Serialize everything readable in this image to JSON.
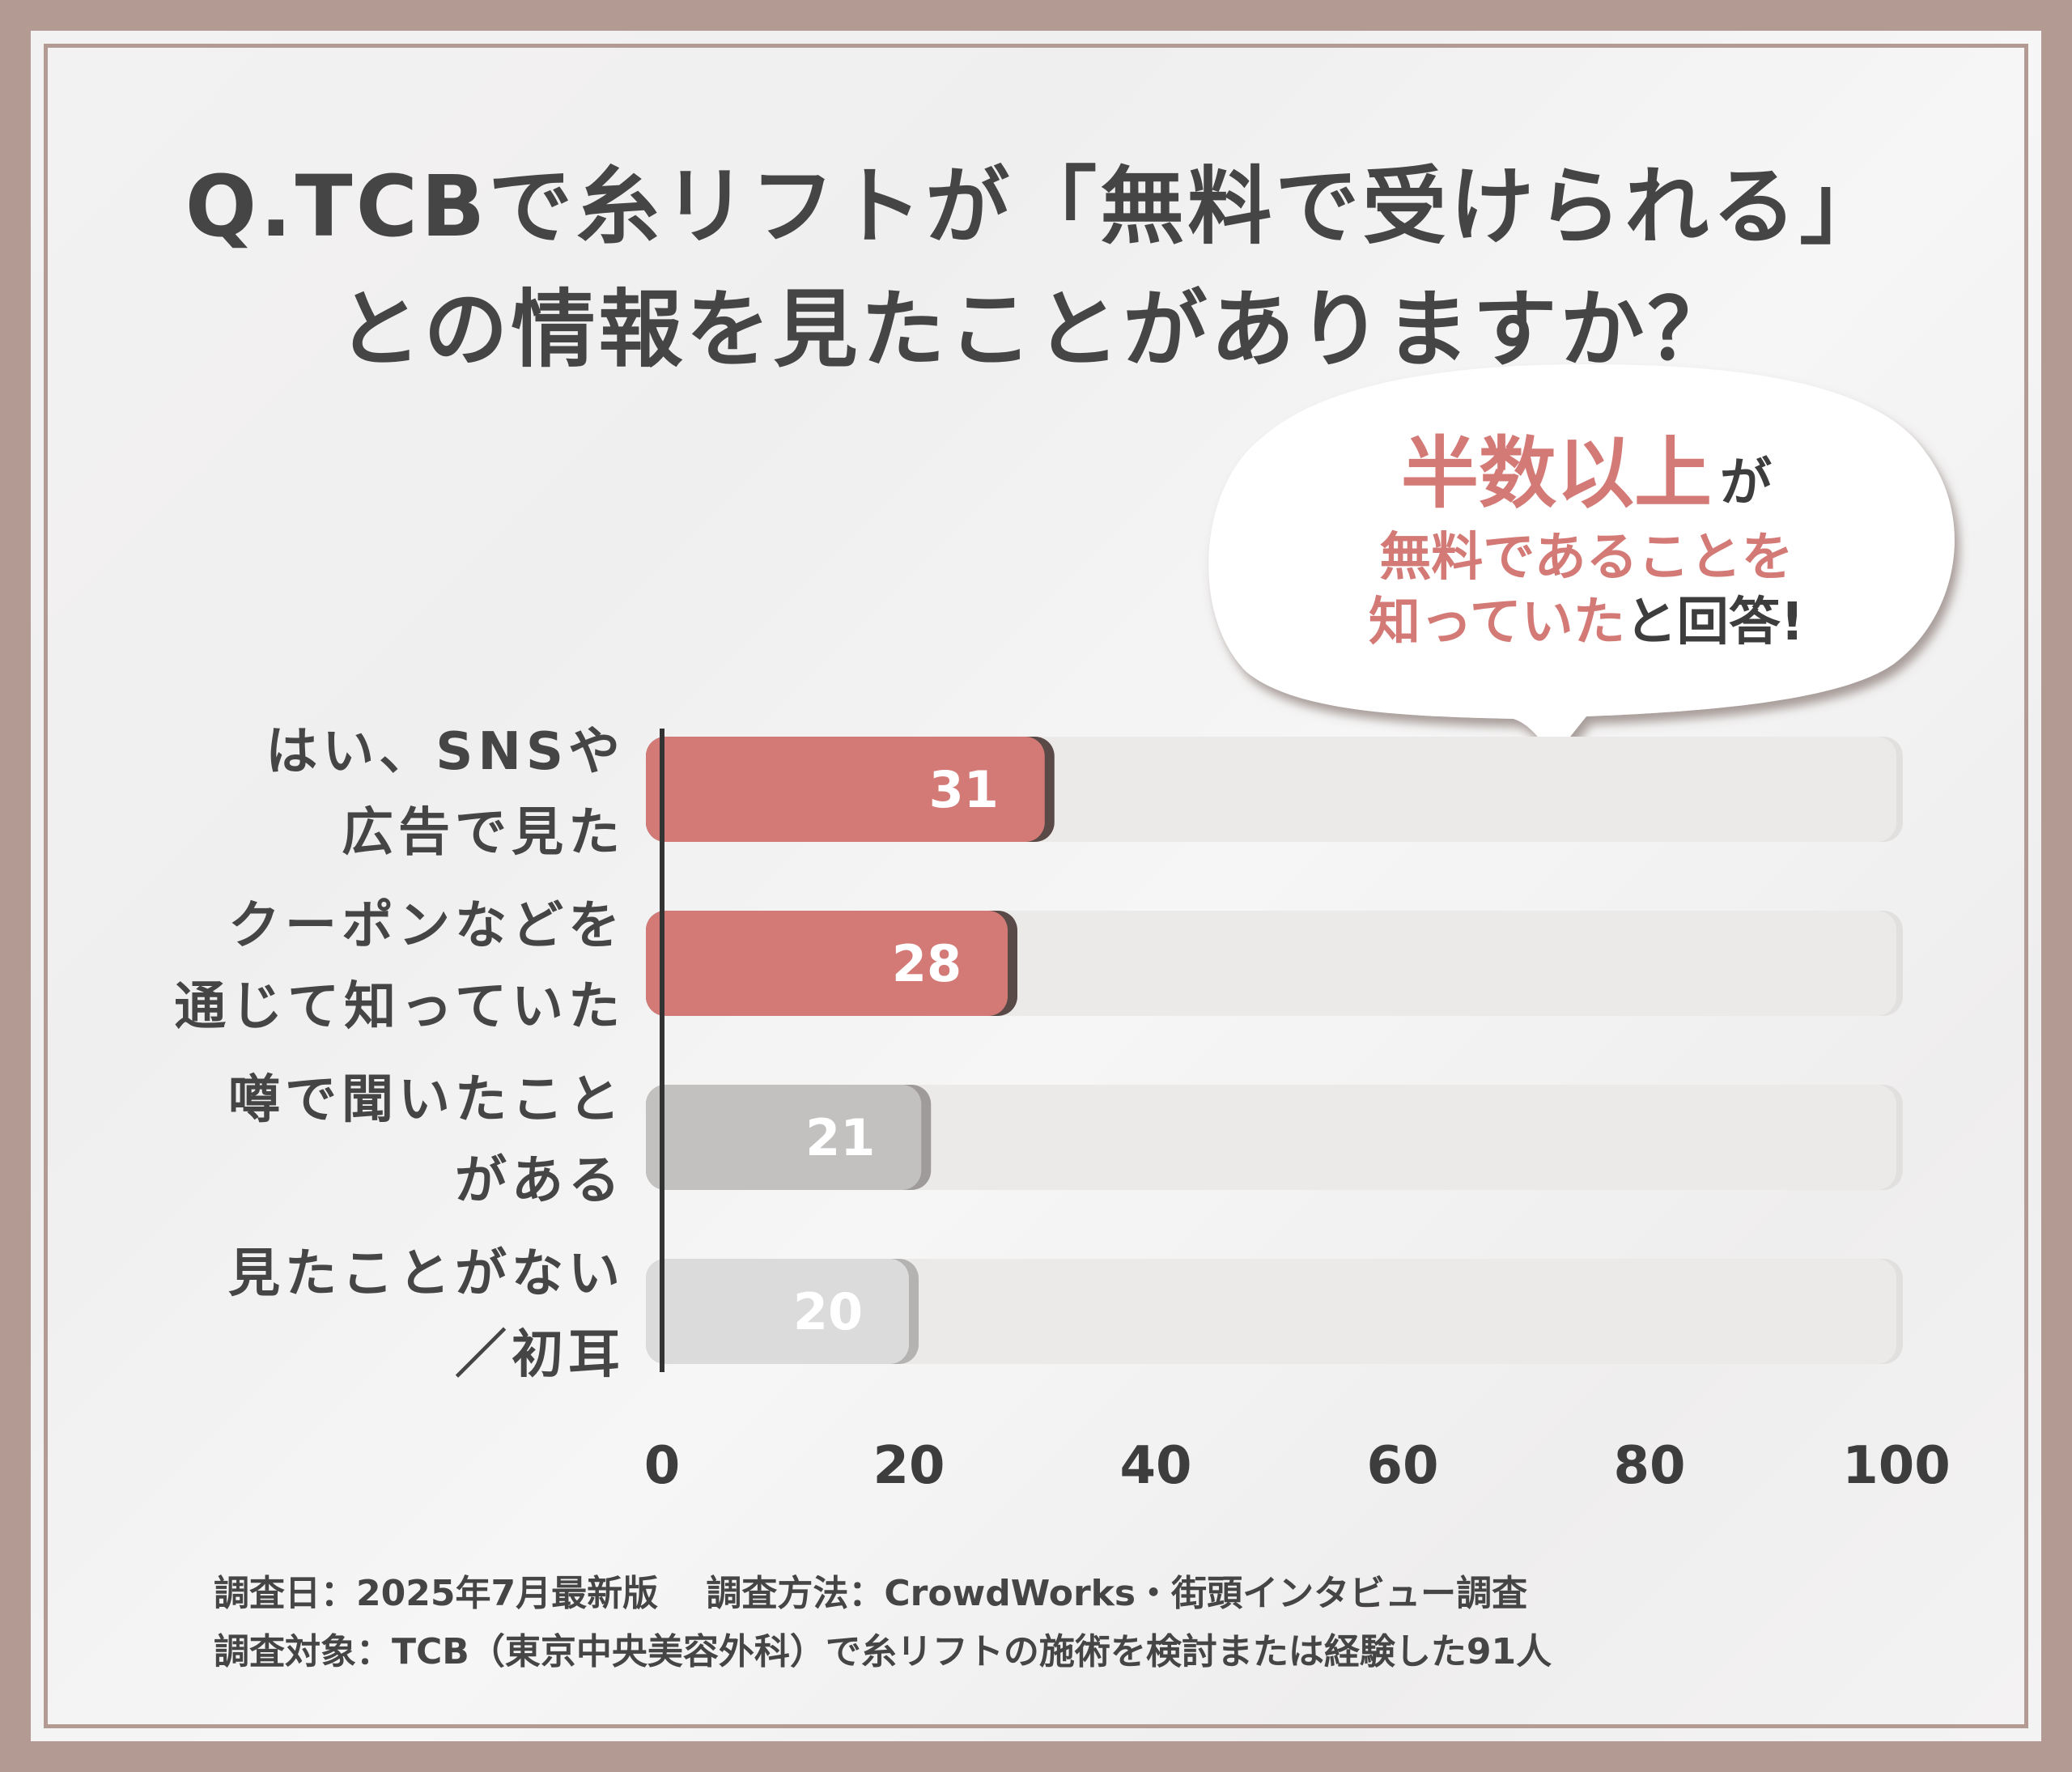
{
  "title_line1": "Q.TCBで糸リフトが「無料で受けられる」",
  "title_line2": "との情報を見たことがありますか？",
  "callout": {
    "highlight": "半数以上",
    "line1_suffix": "が",
    "line2": "無料であることを",
    "line3_highlight": "知っていた",
    "line3_suffix": "と回答!"
  },
  "colors": {
    "accent": "#d47a76",
    "gray_bar": "#c3c1c0",
    "light_bar": "#dcdbdb",
    "track": "#ece9e9",
    "frame": "#b39a92",
    "text": "#454545"
  },
  "chart_data": {
    "type": "bar",
    "orientation": "horizontal",
    "categories": [
      [
        "はい、SNSや",
        "広告で見た"
      ],
      [
        "クーポンなどを",
        "通じて知っていた"
      ],
      [
        "噂で聞いたこと",
        "がある"
      ],
      [
        "見たことがない",
        "／初耳"
      ]
    ],
    "values": [
      31,
      28,
      21,
      20
    ],
    "xlim": [
      0,
      100
    ],
    "xticks": [
      "0",
      "20",
      "40",
      "60",
      "80",
      "100"
    ],
    "grid": false
  },
  "footer": {
    "line1": "調査日：2025年7月最新版　 調査方法：CrowdWorks・街頭インタビュー調査",
    "line2": "調査対象：TCB（東京中央美容外科）で糸リフトの施術を検討または経験した91人"
  }
}
